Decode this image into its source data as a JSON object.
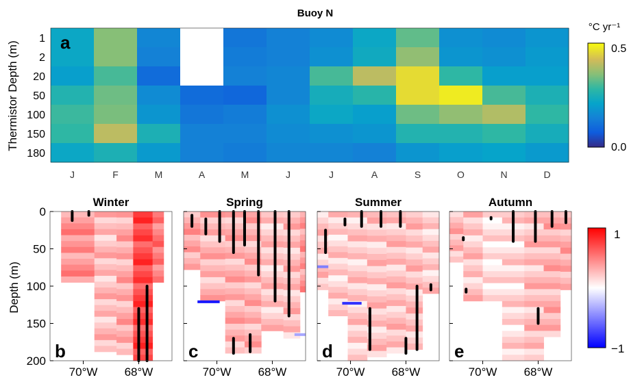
{
  "chart_data": [
    {
      "panel": "a",
      "type": "heatmap",
      "title": "Buoy N",
      "ylabel": "Thermistor Depth (m)",
      "x_categories": [
        "J",
        "F",
        "M",
        "A",
        "M",
        "J",
        "J",
        "A",
        "S",
        "O",
        "N",
        "D"
      ],
      "y_categories": [
        "1",
        "2",
        "20",
        "50",
        "100",
        "150",
        "180"
      ],
      "colorbar": {
        "label": "°C yr⁻¹",
        "min": 0.0,
        "max": 0.5,
        "ticks": [
          "0.0",
          "0.5"
        ]
      },
      "values": [
        [
          0.22,
          0.35,
          0.15,
          null,
          0.12,
          0.14,
          0.16,
          0.22,
          0.32,
          0.17,
          0.16,
          0.18
        ],
        [
          0.22,
          0.35,
          0.14,
          null,
          0.13,
          0.14,
          0.17,
          0.23,
          0.36,
          0.18,
          0.17,
          0.19
        ],
        [
          0.2,
          0.3,
          0.1,
          null,
          0.14,
          0.15,
          0.3,
          0.4,
          0.46,
          0.28,
          0.2,
          0.2
        ],
        [
          0.26,
          0.33,
          0.16,
          0.1,
          0.09,
          0.15,
          0.24,
          0.27,
          0.46,
          0.48,
          0.3,
          0.25
        ],
        [
          0.29,
          0.34,
          0.18,
          0.12,
          0.13,
          0.17,
          0.22,
          0.2,
          0.33,
          0.36,
          0.39,
          0.28
        ],
        [
          0.28,
          0.4,
          0.25,
          0.14,
          0.14,
          0.16,
          0.17,
          0.18,
          0.26,
          0.26,
          0.28,
          0.24
        ],
        [
          0.22,
          0.25,
          0.19,
          0.14,
          0.13,
          0.15,
          0.15,
          0.14,
          0.18,
          0.2,
          0.21,
          0.19
        ]
      ]
    },
    {
      "panel": "b",
      "type": "heatmap",
      "title": "Winter",
      "ylabel": "Depth (m)",
      "xticks": [
        "70°W",
        "68°W"
      ],
      "yticks": [
        "0",
        "50",
        "100",
        "150",
        "200"
      ],
      "xlim": [
        -71.2,
        -66.8
      ],
      "ylim": [
        0,
        200
      ],
      "columns": [
        {
          "x0": -70.8,
          "x1": -69.6,
          "depth": 95,
          "v": 0.42
        },
        {
          "x0": -69.6,
          "x1": -68.8,
          "depth": 188,
          "v": 0.25
        },
        {
          "x0": -68.8,
          "x1": -68.2,
          "depth": 192,
          "v": 0.32
        },
        {
          "x0": -68.2,
          "x1": -67.5,
          "depth": 200,
          "v": 0.72
        },
        {
          "x0": -67.5,
          "x1": -67.1,
          "depth": 95,
          "v": 0.52
        }
      ],
      "profiles": [
        {
          "x": -70.4,
          "top": 0,
          "bottom": 12
        },
        {
          "x": -69.8,
          "top": 0,
          "bottom": 5
        },
        {
          "x": -68.0,
          "top": 130,
          "bottom": 200
        },
        {
          "x": -67.7,
          "top": 100,
          "bottom": 200
        }
      ],
      "colorbar": {
        "min": -1,
        "max": 1,
        "ticks": [
          "1",
          "−1"
        ]
      }
    },
    {
      "panel": "c",
      "type": "heatmap",
      "title": "Spring",
      "xticks": [
        "70°W",
        "68°W"
      ],
      "xlim": [
        -71.2,
        -66.8
      ],
      "ylim": [
        0,
        200
      ],
      "columns": [
        {
          "x0": -71.2,
          "x1": -70.6,
          "depth": 78,
          "v": 0.35
        },
        {
          "x0": -70.6,
          "x1": -69.7,
          "depth": 120,
          "v": 0.28
        },
        {
          "x0": -69.7,
          "x1": -69.0,
          "depth": 190,
          "v": 0.3
        },
        {
          "x0": -69.0,
          "x1": -68.4,
          "depth": 190,
          "v": 0.3
        },
        {
          "x0": -68.4,
          "x1": -67.6,
          "depth": 160,
          "v": 0.22
        },
        {
          "x0": -67.6,
          "x1": -67.0,
          "depth": 170,
          "v": 0.25
        },
        {
          "x0": -67.0,
          "x1": -66.8,
          "depth": 108,
          "v": 0.4
        }
      ],
      "profiles": [
        {
          "x": -70.9,
          "top": 5,
          "bottom": 20
        },
        {
          "x": -70.4,
          "top": 10,
          "bottom": 30
        },
        {
          "x": -69.9,
          "top": 0,
          "bottom": 40
        },
        {
          "x": -69.4,
          "top": 0,
          "bottom": 55
        },
        {
          "x": -69.0,
          "top": 0,
          "bottom": 45
        },
        {
          "x": -68.5,
          "top": 0,
          "bottom": 85
        },
        {
          "x": -67.9,
          "top": 0,
          "bottom": 120
        },
        {
          "x": -67.4,
          "top": 0,
          "bottom": 140
        },
        {
          "x": -69.4,
          "top": 170,
          "bottom": 190
        },
        {
          "x": -68.8,
          "top": 165,
          "bottom": 188
        }
      ],
      "blue_segments": [
        {
          "x0": -70.7,
          "x1": -69.9,
          "depth": 121,
          "v": -0.9
        },
        {
          "x0": -67.2,
          "x1": -66.8,
          "depth": 165,
          "v": -0.35
        }
      ]
    },
    {
      "panel": "d",
      "type": "heatmap",
      "title": "Summer",
      "xticks": [
        "70°W",
        "68°W"
      ],
      "xlim": [
        -71.2,
        -66.8
      ],
      "ylim": [
        0,
        200
      ],
      "columns": [
        {
          "x0": -71.2,
          "x1": -70.8,
          "depth": 105,
          "v": 0.22
        },
        {
          "x0": -70.8,
          "x1": -70.1,
          "depth": 140,
          "v": 0.18
        },
        {
          "x0": -70.1,
          "x1": -69.4,
          "depth": 200,
          "v": 0.2
        },
        {
          "x0": -69.4,
          "x1": -68.7,
          "depth": 195,
          "v": 0.22
        },
        {
          "x0": -68.7,
          "x1": -68.0,
          "depth": 190,
          "v": 0.24
        },
        {
          "x0": -68.0,
          "x1": -67.4,
          "depth": 185,
          "v": 0.24
        },
        {
          "x0": -67.4,
          "x1": -66.8,
          "depth": 110,
          "v": 0.2
        }
      ],
      "profiles": [
        {
          "x": -70.9,
          "top": 25,
          "bottom": 55
        },
        {
          "x": -70.2,
          "top": 10,
          "bottom": 18
        },
        {
          "x": -69.6,
          "top": 0,
          "bottom": 20
        },
        {
          "x": -68.9,
          "top": 0,
          "bottom": 20
        },
        {
          "x": -68.2,
          "top": 0,
          "bottom": 20
        },
        {
          "x": -68.0,
          "top": 170,
          "bottom": 190
        },
        {
          "x": -69.3,
          "top": 130,
          "bottom": 185
        },
        {
          "x": -67.6,
          "top": 100,
          "bottom": 185
        },
        {
          "x": -67.1,
          "top": 98,
          "bottom": 105
        }
      ],
      "blue_segments": [
        {
          "x0": -71.2,
          "x1": -70.8,
          "depth": 74,
          "v": -0.5
        },
        {
          "x0": -70.3,
          "x1": -69.6,
          "depth": 123,
          "v": -0.8
        }
      ]
    },
    {
      "panel": "e",
      "type": "heatmap",
      "title": "Autumn",
      "xticks": [
        "70°W",
        "68°W"
      ],
      "xlim": [
        -71.2,
        -66.8
      ],
      "ylim": [
        0,
        200
      ],
      "columns": [
        {
          "x0": -71.2,
          "x1": -70.7,
          "depth": 68,
          "v": 0.28
        },
        {
          "x0": -70.7,
          "x1": -70.0,
          "depth": 120,
          "v": 0.22
        },
        {
          "x0": -70.0,
          "x1": -69.3,
          "depth": 120,
          "v": 0.1
        },
        {
          "x0": -69.3,
          "x1": -68.5,
          "depth": 200,
          "v": 0.15
        },
        {
          "x0": -68.5,
          "x1": -67.8,
          "depth": 200,
          "v": 0.25
        },
        {
          "x0": -67.8,
          "x1": -67.2,
          "depth": 168,
          "v": 0.3
        },
        {
          "x0": -67.2,
          "x1": -66.8,
          "depth": 105,
          "v": 0.32
        }
      ],
      "profiles": [
        {
          "x": -70.7,
          "top": 35,
          "bottom": 38
        },
        {
          "x": -69.7,
          "top": 8,
          "bottom": 10
        },
        {
          "x": -68.9,
          "top": 0,
          "bottom": 40
        },
        {
          "x": -68.1,
          "top": 0,
          "bottom": 40
        },
        {
          "x": -67.5,
          "top": 0,
          "bottom": 20
        },
        {
          "x": -67.0,
          "top": 0,
          "bottom": 15
        },
        {
          "x": -68.0,
          "top": 130,
          "bottom": 150
        },
        {
          "x": -70.6,
          "top": 104,
          "bottom": 108
        }
      ],
      "blue_segments": []
    }
  ],
  "panel_labels": {
    "a": "a",
    "b": "b",
    "c": "c",
    "d": "d",
    "e": "e"
  }
}
